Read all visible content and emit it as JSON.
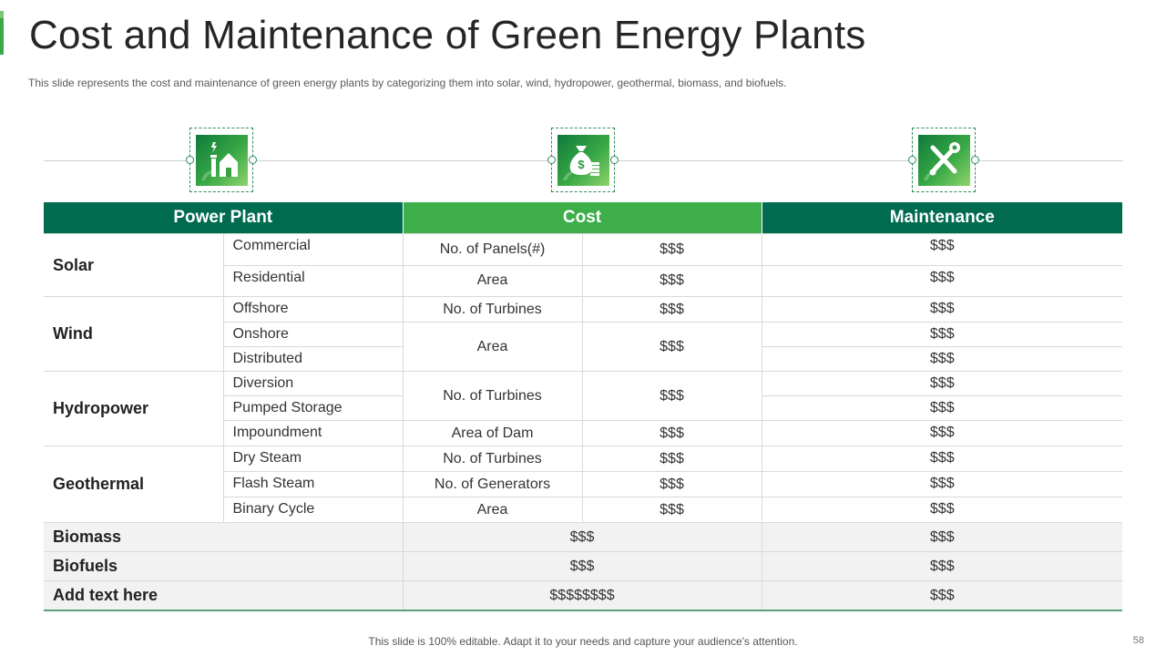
{
  "title": "Cost and Maintenance of Green Energy Plants",
  "subtitle": "This slide represents the cost and maintenance of green energy plants by categorizing them into solar, wind, hydropower, geothermal, biomass, and biofuels.",
  "icons": [
    "power-plant-icon",
    "money-bag-icon",
    "tools-icon"
  ],
  "colors": {
    "header_dark": "#006b4f",
    "header_green": "#3dae4a",
    "icon_gradient_start": "#0f7a3b",
    "icon_gradient_end": "#8fd46b"
  },
  "table": {
    "headers": {
      "power_plant": "Power Plant",
      "cost": "Cost",
      "maintenance": "Maintenance"
    },
    "solar": {
      "category": "Solar",
      "subtypes": [
        "Commercial",
        "Residential"
      ],
      "cost_items": [
        {
          "label": "No. of Panels(#)",
          "value": "$$$"
        },
        {
          "label": "Area",
          "value": "$$$"
        }
      ],
      "maintenance": [
        "$$$",
        "$$$"
      ]
    },
    "wind": {
      "category": "Wind",
      "subtypes": [
        "Offshore",
        "Onshore",
        "Distributed"
      ],
      "cost_items": [
        {
          "label": "No. of Turbines",
          "value": "$$$"
        },
        {
          "label": "Area",
          "value": "$$$"
        }
      ],
      "maintenance": [
        "$$$",
        "$$$",
        "$$$"
      ]
    },
    "hydropower": {
      "category": "Hydropower",
      "subtypes": [
        "Diversion",
        "Pumped Storage",
        "Impoundment"
      ],
      "cost_items": [
        {
          "label": "No. of Turbines",
          "value": "$$$"
        },
        {
          "label": "Area of Dam",
          "value": "$$$"
        }
      ],
      "maintenance": [
        "$$$",
        "$$$",
        "$$$"
      ]
    },
    "geothermal": {
      "category": "Geothermal",
      "subtypes": [
        "Dry Steam",
        "Flash Steam",
        "Binary Cycle"
      ],
      "cost_items": [
        {
          "label": "No. of Turbines",
          "value": "$$$"
        },
        {
          "label": "No. of Generators",
          "value": "$$$"
        },
        {
          "label": "Area",
          "value": "$$$"
        }
      ],
      "maintenance": [
        "$$$",
        "$$$",
        "$$$"
      ]
    },
    "biomass": {
      "category": "Biomass",
      "cost": "$$$",
      "maintenance": "$$$"
    },
    "biofuels": {
      "category": "Biofuels",
      "cost": "$$$",
      "maintenance": "$$$"
    },
    "add_text": {
      "category": "Add text here",
      "cost": "$$$$$$$$",
      "maintenance": "$$$"
    }
  },
  "footer": "This slide is 100% editable. Adapt it to your needs and capture your audience's attention.",
  "page_number": "58"
}
